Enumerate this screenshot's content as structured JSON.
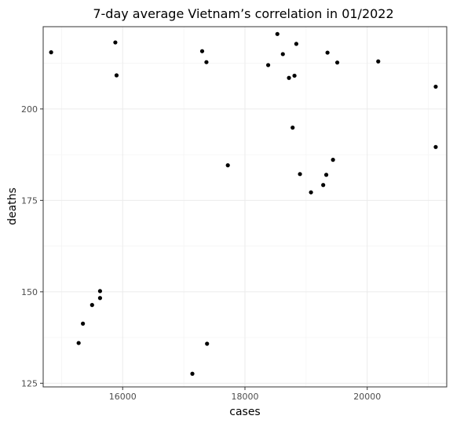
{
  "chart_data": {
    "type": "scatter",
    "title": "7-day average Vietnam’s correlation in 01/2022",
    "xlabel": "cases",
    "ylabel": "deaths",
    "xlim": [
      14700,
      21300
    ],
    "ylim": [
      124,
      222.5
    ],
    "x_ticks": [
      16000,
      18000,
      20000
    ],
    "y_ticks": [
      125,
      150,
      175,
      200
    ],
    "grid": true,
    "points": [
      {
        "x": 14830,
        "y": 215.5
      },
      {
        "x": 15880,
        "y": 218.2
      },
      {
        "x": 15900,
        "y": 209.2
      },
      {
        "x": 15280,
        "y": 136.0
      },
      {
        "x": 15350,
        "y": 141.3
      },
      {
        "x": 15500,
        "y": 146.4
      },
      {
        "x": 15630,
        "y": 148.3
      },
      {
        "x": 15630,
        "y": 150.2
      },
      {
        "x": 17140,
        "y": 127.6
      },
      {
        "x": 17380,
        "y": 135.8
      },
      {
        "x": 17300,
        "y": 215.8
      },
      {
        "x": 17370,
        "y": 212.8
      },
      {
        "x": 17720,
        "y": 184.6
      },
      {
        "x": 18380,
        "y": 212.0
      },
      {
        "x": 18530,
        "y": 220.5
      },
      {
        "x": 18620,
        "y": 215.0
      },
      {
        "x": 18720,
        "y": 208.5
      },
      {
        "x": 18780,
        "y": 194.9
      },
      {
        "x": 18810,
        "y": 209.1
      },
      {
        "x": 18840,
        "y": 217.8
      },
      {
        "x": 18900,
        "y": 182.2
      },
      {
        "x": 19080,
        "y": 177.2
      },
      {
        "x": 19280,
        "y": 179.2
      },
      {
        "x": 19330,
        "y": 182.0
      },
      {
        "x": 19350,
        "y": 215.4
      },
      {
        "x": 19440,
        "y": 186.1
      },
      {
        "x": 19510,
        "y": 212.7
      },
      {
        "x": 20180,
        "y": 213.0
      },
      {
        "x": 21120,
        "y": 206.1
      },
      {
        "x": 21120,
        "y": 189.6
      }
    ]
  }
}
